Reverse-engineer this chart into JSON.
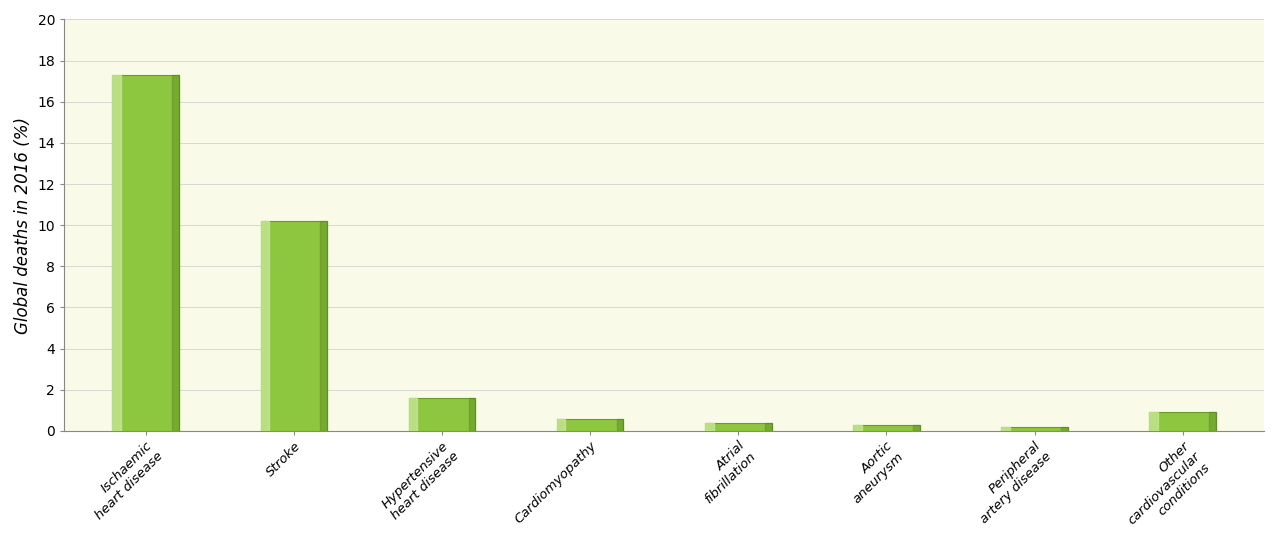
{
  "categories": [
    "Ischaemic\nheart disease",
    "Stroke",
    "Hypertensive\nheart disease",
    "Cardiomyopathy",
    "Atrial\nfibrillation",
    "Aortic\naneurysm",
    "Peripheral\nartery disease",
    "Other\ncardiovascular\nconditions"
  ],
  "values": [
    17.3,
    10.2,
    1.6,
    0.6,
    0.4,
    0.3,
    0.2,
    0.9
  ],
  "bar_color_main": "#8dc63f",
  "bar_color_light": "#c8e89a",
  "bar_color_dark": "#5a8a20",
  "bar_color_edge": "#6a9a2a",
  "plot_bg_color": "#fafae8",
  "fig_bg_color": "#ffffff",
  "ylabel": "Global deaths in 2016 (%)",
  "ylim": [
    0,
    20
  ],
  "yticks": [
    0,
    2,
    4,
    6,
    8,
    10,
    12,
    14,
    16,
    18,
    20
  ],
  "tick_label_fontsize": 10,
  "ylabel_fontsize": 12,
  "xlabel_fontsize": 9.5,
  "bar_width": 0.45,
  "spine_color": "#888888",
  "grid_color": "#cccccc",
  "grid_linewidth": 0.5
}
